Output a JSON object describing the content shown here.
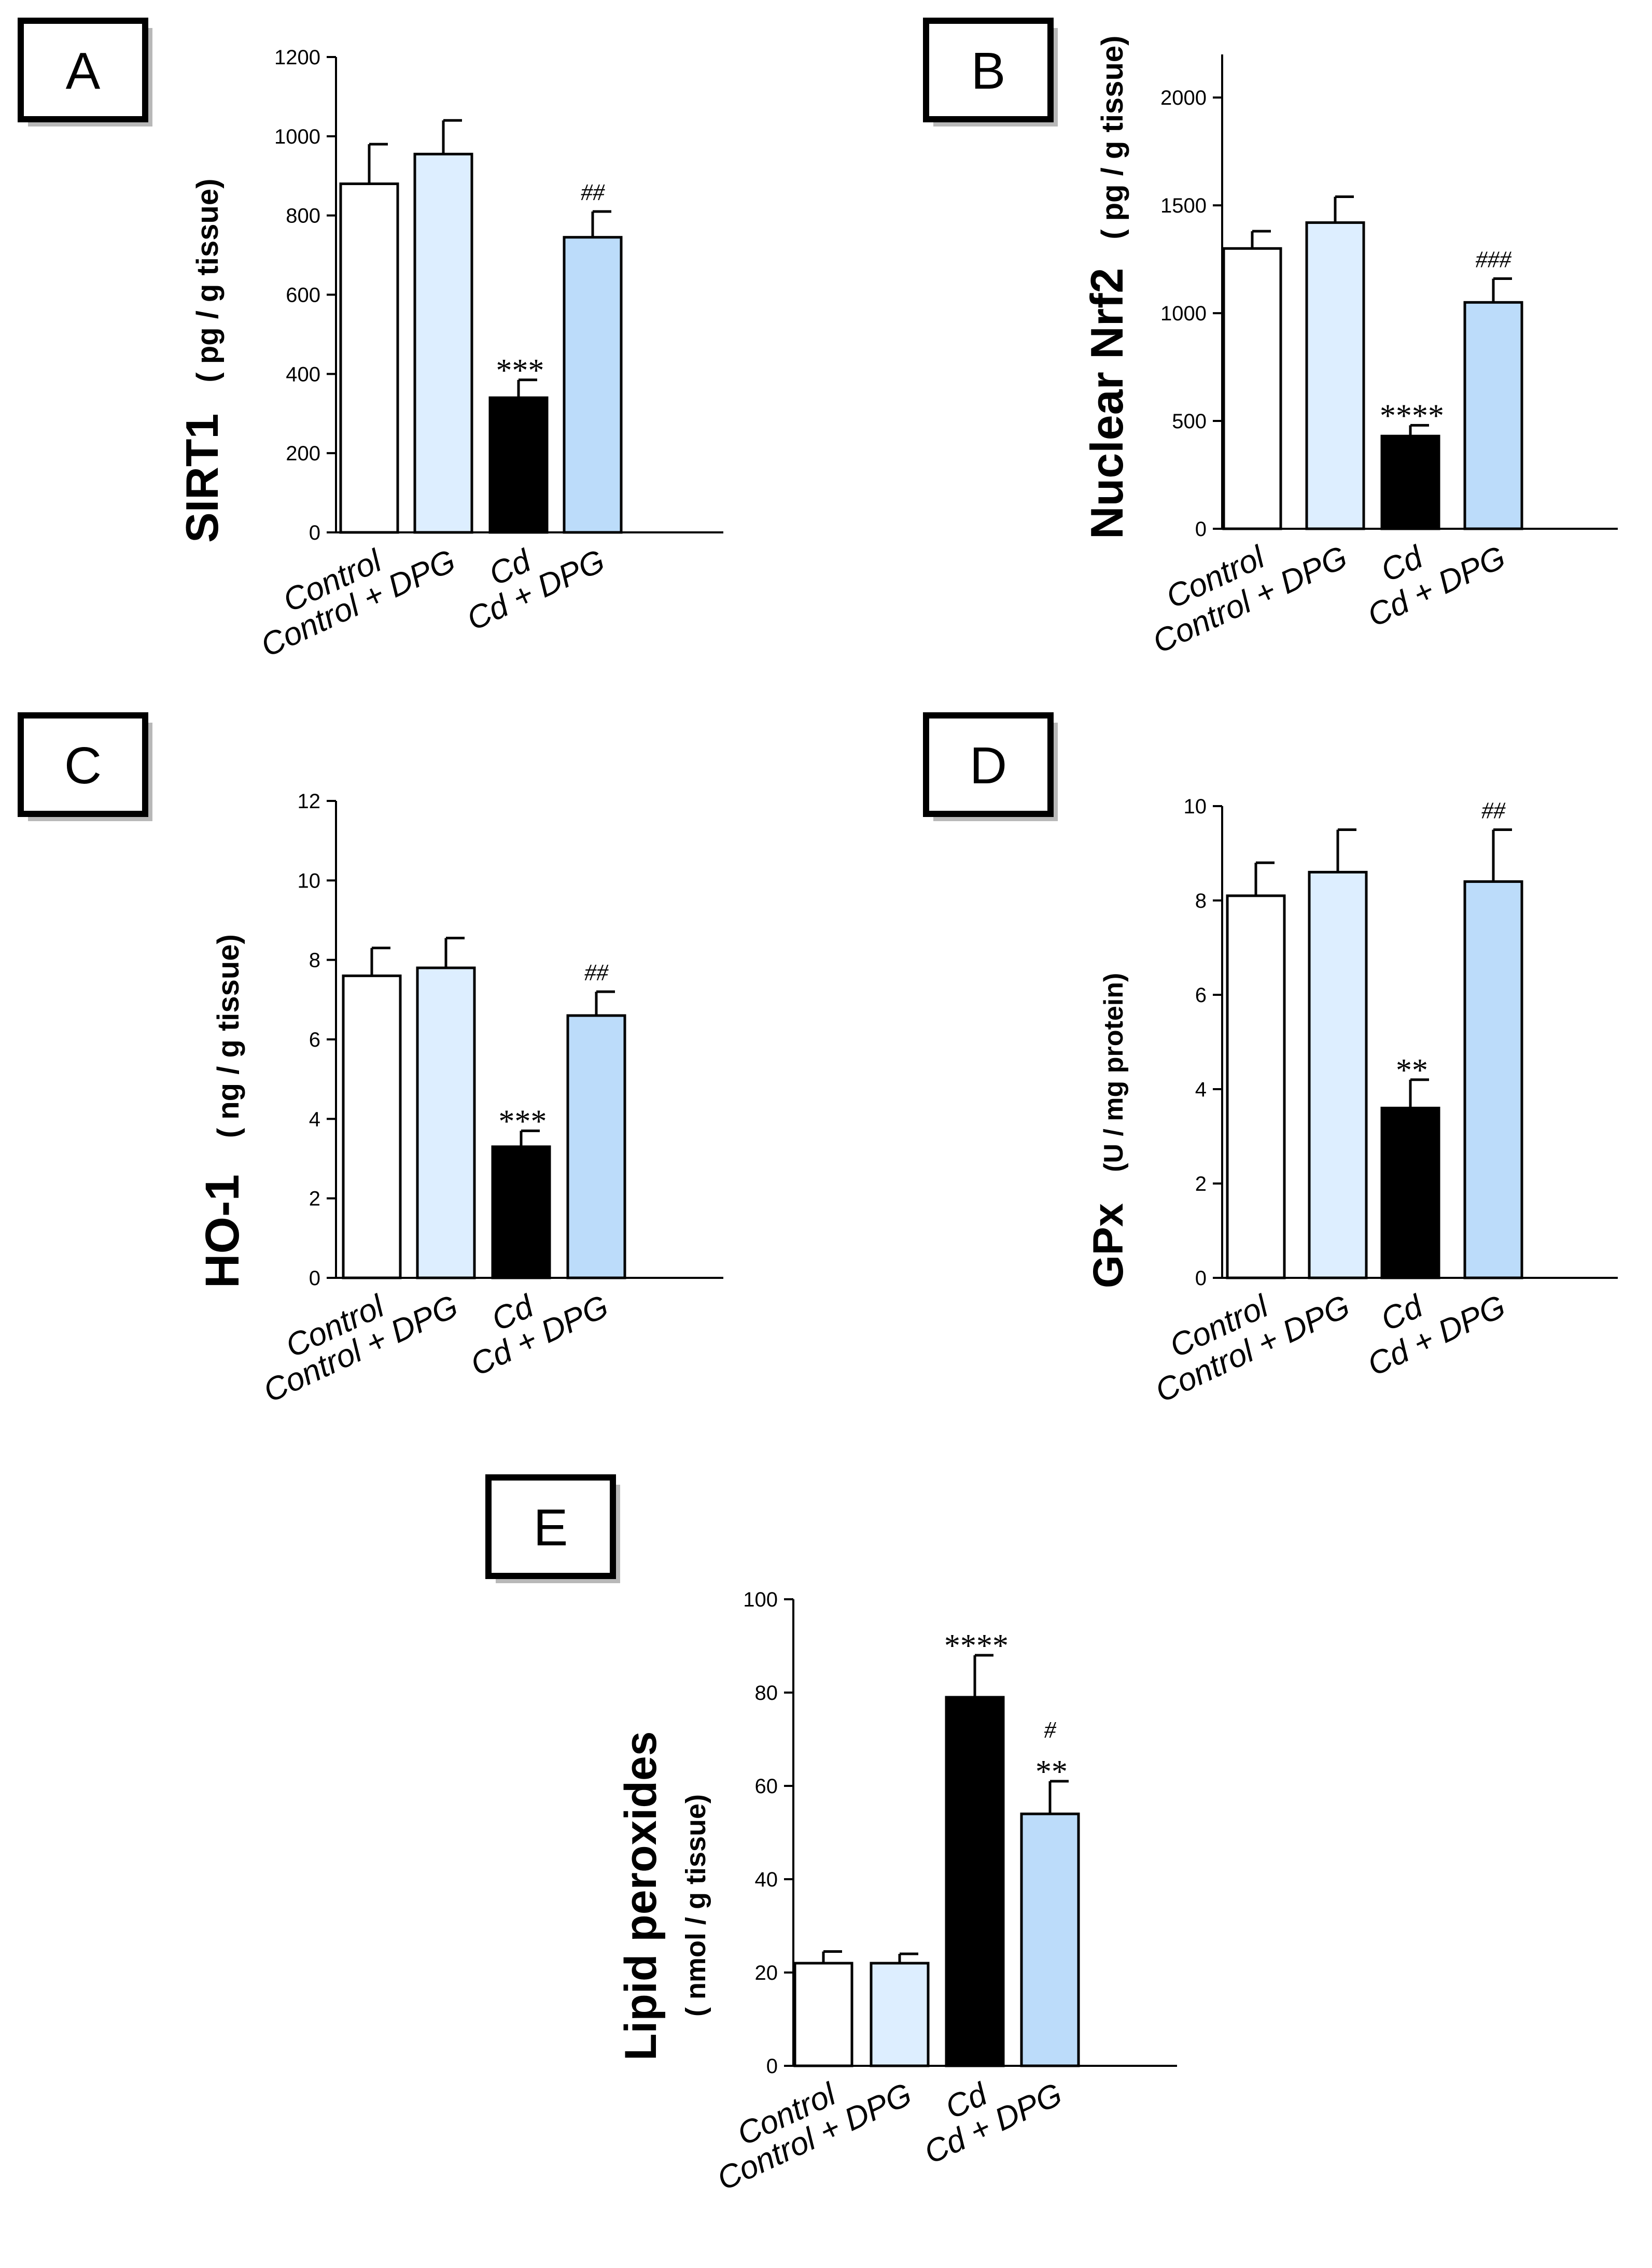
{
  "categories": [
    "Control",
    "Control + DPG",
    "Cd",
    "Cd + DPG"
  ],
  "bar_colors": [
    "#ffffff",
    "#ddeeff",
    "#000000",
    "#bcdcfa"
  ],
  "chart_data": [
    {
      "type": "bar",
      "panel": "A",
      "ylabel": "SIRT1",
      "ylabel_unit": "( pg / g tissue)",
      "ylim": [
        0,
        1200
      ],
      "yticks": [
        0,
        200,
        400,
        600,
        800,
        1000,
        1200
      ],
      "categories": [
        "Control",
        "Control + DPG",
        "Cd",
        "Cd + DPG"
      ],
      "values": [
        880,
        955,
        340,
        745
      ],
      "errors": [
        100,
        85,
        45,
        65
      ],
      "annotations": [
        "",
        "",
        "***",
        "##"
      ]
    },
    {
      "type": "bar",
      "panel": "B",
      "ylabel": "Nuclear Nrf2",
      "ylabel_unit": "( pg / g tissue)",
      "ylim": [
        0,
        2200
      ],
      "yticks": [
        0,
        500,
        1000,
        1500,
        2000
      ],
      "categories": [
        "Control",
        "Control + DPG",
        "Cd",
        "Cd + DPG"
      ],
      "values": [
        1300,
        1420,
        430,
        1050
      ],
      "errors": [
        80,
        120,
        50,
        110
      ],
      "annotations": [
        "",
        "",
        "****",
        "###"
      ]
    },
    {
      "type": "bar",
      "panel": "C",
      "ylabel": "HO-1",
      "ylabel_unit": "( ng / g tissue)",
      "ylim": [
        0,
        12
      ],
      "yticks": [
        0,
        2,
        4,
        6,
        8,
        10,
        12
      ],
      "categories": [
        "Control",
        "Control + DPG",
        "Cd",
        "Cd + DPG"
      ],
      "values": [
        7.6,
        7.8,
        3.3,
        6.6
      ],
      "errors": [
        0.7,
        0.75,
        0.4,
        0.6
      ],
      "annotations": [
        "",
        "",
        "***",
        "##"
      ]
    },
    {
      "type": "bar",
      "panel": "D",
      "ylabel": "GPx",
      "ylabel_unit": "(U / mg protein)",
      "ylim": [
        0,
        10
      ],
      "yticks": [
        0,
        2,
        4,
        6,
        8,
        10
      ],
      "categories": [
        "Control",
        "Control + DPG",
        "Cd",
        "Cd + DPG"
      ],
      "values": [
        8.1,
        8.6,
        3.6,
        8.4
      ],
      "errors": [
        0.7,
        0.9,
        0.6,
        1.1
      ],
      "annotations": [
        "",
        "",
        "**",
        "##"
      ]
    },
    {
      "type": "bar",
      "panel": "E",
      "ylabel": "Lipid peroxides",
      "ylabel_unit": "( nmol / g tissue)",
      "ylim": [
        0,
        100
      ],
      "yticks": [
        0,
        20,
        40,
        60,
        80,
        100
      ],
      "categories": [
        "Control",
        "Control + DPG",
        "Cd",
        "Cd + DPG"
      ],
      "values": [
        22,
        22,
        79,
        54
      ],
      "errors": [
        2.5,
        2,
        9,
        7
      ],
      "annotations": [
        "",
        "",
        "****",
        "#\n**"
      ]
    }
  ]
}
